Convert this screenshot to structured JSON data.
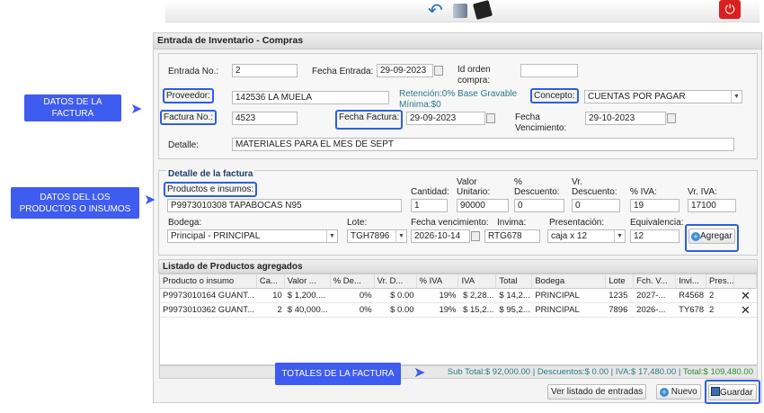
{
  "toolbar": {
    "icons": [
      "back-arrow-icon",
      "server-icon",
      "print-icon",
      "power-icon"
    ]
  },
  "panel_title": "Entrada de Inventario - Compras",
  "header": {
    "entrada_no_label": "Entrada No.:",
    "entrada_no": "2",
    "fecha_entrada_label": "Fecha Entrada:",
    "fecha_entrada": "29-09-2023",
    "id_orden_label": "Id orden compra:",
    "id_orden": "",
    "proveedor_label": "Proveedor:",
    "proveedor": "142536 LA MUELA",
    "retencion": "Retención:0% Base Gravable Mínima:$0",
    "concepto_label": "Concepto:",
    "concepto": "CUENTAS POR PAGAR",
    "factura_no_label": "Factura No.:",
    "factura_no": "4523",
    "fecha_factura_label": "Fecha Factura:",
    "fecha_factura": "29-09-2023",
    "fecha_venc_label": "Fecha Vencimiento:",
    "fecha_venc": "29-10-2023",
    "detalle_label": "Detalle:",
    "detalle": "MATERIALES PARA EL MES DE SEPT"
  },
  "detail": {
    "legend": "Detalle de la factura",
    "productos_label": "Productos e insumos:",
    "productos": "P9973010308 TAPABOCAS N95",
    "cantidad_label": "Cantidad:",
    "cantidad": "1",
    "valor_label": "Valor Unitario:",
    "valor": "90000",
    "pdesc_label": "% Descuento:",
    "pdesc": "0",
    "vdesc_label": "Vr. Descuento:",
    "vdesc": "0",
    "piva_label": "% IVA:",
    "piva": "19",
    "viva_label": "Vr. IVA:",
    "viva": "17100",
    "bodega_label": "Bodega:",
    "bodega": "Principal - PRINCIPAL",
    "lote_label": "Lote:",
    "lote": "TGH7896",
    "fvenc_label": "Fecha vencimiento:",
    "fvenc": "2026-10-14",
    "invima_label": "Invima:",
    "invima": "RTG678",
    "pres_label": "Presentación:",
    "pres": "caja x 12",
    "equiv_label": "Equivalencia:",
    "equiv": "12",
    "agregar": "Agregar"
  },
  "list": {
    "title": "Listado de Productos agregados",
    "columns": [
      "Producto o insumo",
      "Ca...",
      "Valor ...",
      "% De...",
      "Vr. D...",
      "% IVA",
      "IVA",
      "Total",
      "Bodega",
      "Lote",
      "Fch. V...",
      "Invi...",
      "Pres..."
    ],
    "rows": [
      [
        "P9973010164 GUANT...",
        "10",
        "$ 1,200....",
        "0%",
        "$ 0.00",
        "19%",
        "$ 2,28...",
        "$ 14,2...",
        "PRINCIPAL",
        "1235",
        "2027-...",
        "R4568",
        "2"
      ],
      [
        "P9973010362 GUANT...",
        "2",
        "$ 40,000...",
        "0%",
        "$ 0.00",
        "19%",
        "$ 15,2...",
        "$ 95,2...",
        "PRINCIPAL",
        "7896",
        "2026-...",
        "TY678",
        "2"
      ]
    ]
  },
  "totals": {
    "subtotal": "Sub Total:$ 92,000.00",
    "descuentos": "Descuentos:$ 0.00",
    "iva": "IVA:$ 17,480.00",
    "total": "Total:$ 109,480.00"
  },
  "buttons": {
    "ver": "Ver listado de entradas",
    "nuevo": "Nuevo",
    "guardar": "Guardar"
  },
  "annotations": {
    "factura": "DATOS DE LA FACTURA",
    "productos": "DATOS DEL LOS PRODUCTOS O INSUMOS",
    "totales": "TOTALES DE LA  FACTURA"
  },
  "colors": {
    "highlight": "#2f5fe0",
    "annotation": "#3f5cf0",
    "total": "#2e8b2e",
    "info": "#2a7a8a"
  }
}
